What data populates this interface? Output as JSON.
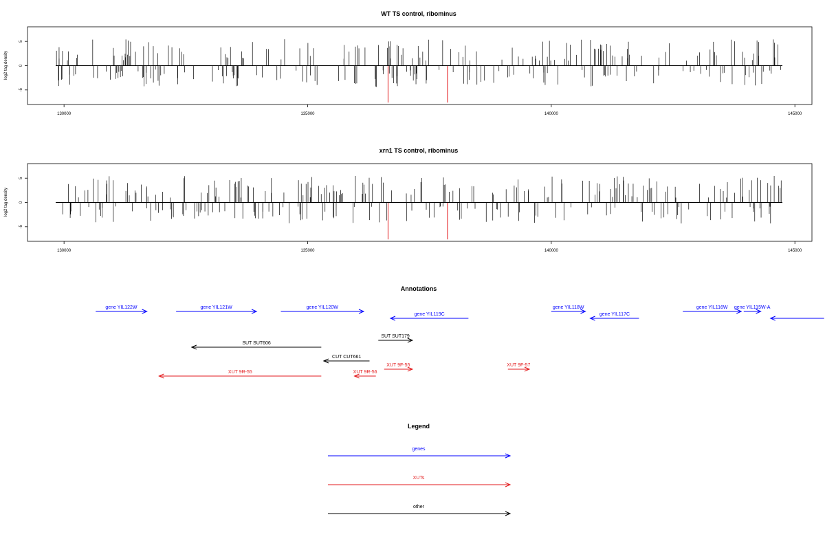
{
  "chart_data": [
    {
      "type": "bar",
      "title": "WT TS control, ribominus",
      "ylabel": "log2 tag density",
      "xlim": [
        129250,
        145350
      ],
      "ylim": [
        -8,
        8
      ],
      "xticks": [
        130000,
        135000,
        140000,
        145000
      ],
      "yticks": [
        -5,
        0,
        5
      ],
      "highlights": [
        {
          "x": 136650,
          "value": -7.6,
          "color": "#e31a1c"
        },
        {
          "x": 137870,
          "value": -7.6,
          "color": "#e31a1c"
        }
      ]
    },
    {
      "type": "bar",
      "title": "xrn1 TS control, ribominus",
      "ylabel": "log2 tag density",
      "xlim": [
        129250,
        145350
      ],
      "ylim": [
        -8,
        8
      ],
      "xticks": [
        130000,
        135000,
        140000,
        145000
      ],
      "yticks": [
        -5,
        0,
        5
      ],
      "highlights": [
        {
          "x": 136650,
          "value": -7.6,
          "color": "#e31a1c"
        },
        {
          "x": 137870,
          "value": -7.6,
          "color": "#e31a1c"
        }
      ]
    }
  ],
  "annotations": {
    "title": "Annotations",
    "features": [
      {
        "label": "gene YIL122W",
        "start": 130650,
        "end": 131700,
        "strand": "+",
        "color": "#0000ff",
        "row": 0
      },
      {
        "label": "gene YIL121W",
        "start": 132300,
        "end": 133950,
        "strand": "+",
        "color": "#0000ff",
        "row": 0
      },
      {
        "label": "gene YIL120W",
        "start": 134450,
        "end": 136150,
        "strand": "+",
        "color": "#0000ff",
        "row": 0
      },
      {
        "label": "gene YIL119C",
        "start": 136700,
        "end": 138300,
        "strand": "-",
        "color": "#0000ff",
        "row": 1
      },
      {
        "label": "gene YIL118W",
        "start": 140000,
        "end": 140700,
        "strand": "+",
        "color": "#0000ff",
        "row": 0
      },
      {
        "label": "gene YIL117C",
        "start": 140800,
        "end": 141800,
        "strand": "-",
        "color": "#0000ff",
        "row": 1
      },
      {
        "label": "gene YIL116W",
        "start": 142700,
        "end": 143900,
        "strand": "+",
        "color": "#0000ff",
        "row": 0
      },
      {
        "label": "gene YIL115W-A",
        "start": 143950,
        "end": 144300,
        "strand": "+",
        "color": "#0000ff",
        "row": 0
      },
      {
        "label": "",
        "start": 144500,
        "end": 145600,
        "strand": "-",
        "color": "#0000ff",
        "row": 1
      },
      {
        "label": "SUT SUT606",
        "start": 132620,
        "end": 135280,
        "strand": "-",
        "color": "#000000",
        "row": 3
      },
      {
        "label": "SUT SUT179",
        "start": 136450,
        "end": 137150,
        "strand": "+",
        "color": "#000000",
        "row": 2
      },
      {
        "label": "CUT CUT661",
        "start": 135330,
        "end": 136270,
        "strand": "-",
        "color": "#000000",
        "row": 4
      },
      {
        "label": "XUT 9R-55",
        "start": 131950,
        "end": 135280,
        "strand": "-",
        "color": "#e31a1c",
        "row": 6
      },
      {
        "label": "XUT 9R-56",
        "start": 135960,
        "end": 136400,
        "strand": "-",
        "color": "#e31a1c",
        "row": 6
      },
      {
        "label": "XUT 9F-55",
        "start": 136570,
        "end": 137150,
        "strand": "+",
        "color": "#e31a1c",
        "row": 5
      },
      {
        "label": "XUT 9F-57",
        "start": 139110,
        "end": 139550,
        "strand": "+",
        "color": "#e31a1c",
        "row": 5
      }
    ]
  },
  "legend": {
    "title": "Legend",
    "items": [
      {
        "label": "genes",
        "color": "#0000ff"
      },
      {
        "label": "XUTs",
        "color": "#e31a1c"
      },
      {
        "label": "other",
        "color": "#000000"
      }
    ]
  }
}
